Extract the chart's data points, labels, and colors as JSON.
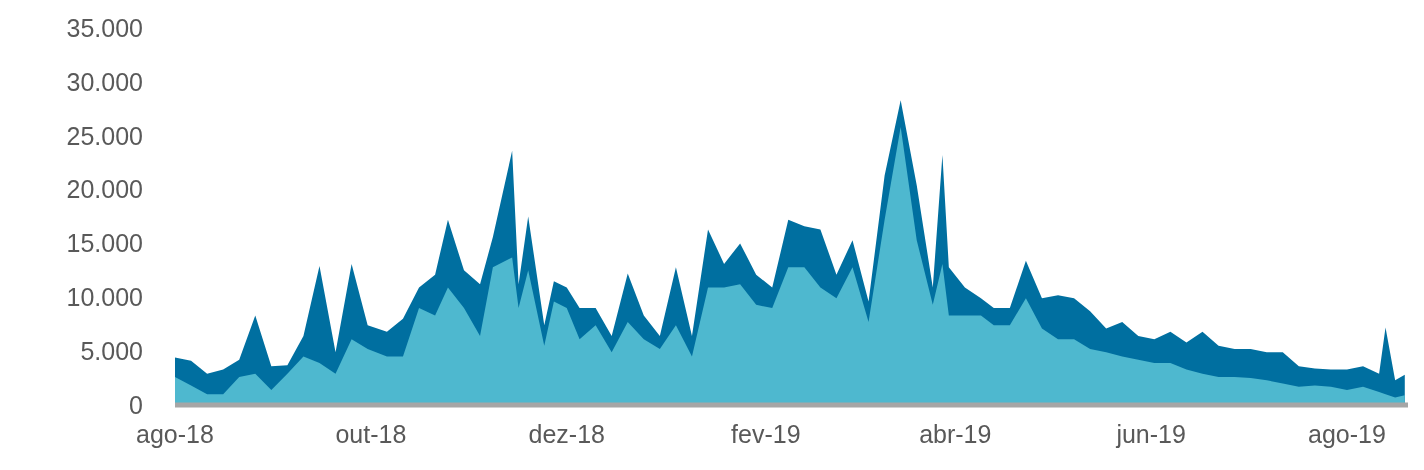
{
  "chart_data": {
    "type": "area",
    "x": [
      "2018-08-01",
      "2018-08-06",
      "2018-08-11",
      "2018-08-16",
      "2018-08-21",
      "2018-08-26",
      "2018-08-31",
      "2018-09-05",
      "2018-09-10",
      "2018-09-15",
      "2018-09-20",
      "2018-09-25",
      "2018-09-30",
      "2018-10-06",
      "2018-10-11",
      "2018-10-16",
      "2018-10-21",
      "2018-10-25",
      "2018-10-30",
      "2018-11-04",
      "2018-11-08",
      "2018-11-14",
      "2018-11-16",
      "2018-11-19",
      "2018-11-24",
      "2018-11-27",
      "2018-12-01",
      "2018-12-05",
      "2018-12-10",
      "2018-12-15",
      "2018-12-20",
      "2018-12-25",
      "2018-12-30",
      "2019-01-04",
      "2019-01-09",
      "2019-01-14",
      "2019-01-19",
      "2019-01-24",
      "2019-01-29",
      "2019-02-03",
      "2019-02-08",
      "2019-02-13",
      "2019-02-18",
      "2019-02-23",
      "2019-02-28",
      "2019-03-05",
      "2019-03-10",
      "2019-03-15",
      "2019-03-20",
      "2019-03-25",
      "2019-03-28",
      "2019-03-30",
      "2019-04-04",
      "2019-04-09",
      "2019-04-13",
      "2019-04-18",
      "2019-04-23",
      "2019-04-28",
      "2019-05-03",
      "2019-05-08",
      "2019-05-13",
      "2019-05-18",
      "2019-05-23",
      "2019-05-28",
      "2019-06-02",
      "2019-06-07",
      "2019-06-12",
      "2019-06-17",
      "2019-06-22",
      "2019-06-27",
      "2019-07-02",
      "2019-07-07",
      "2019-07-12",
      "2019-07-17",
      "2019-07-22",
      "2019-07-27",
      "2019-08-01",
      "2019-08-06",
      "2019-08-11",
      "2019-08-13",
      "2019-08-16",
      "2019-08-19"
    ],
    "series": [
      {
        "color": "#006fa0",
        "values": [
          4400,
          4100,
          2900,
          3300,
          4200,
          8300,
          3600,
          3700,
          6400,
          12900,
          4900,
          13100,
          7400,
          6800,
          8000,
          10900,
          12100,
          17200,
          12500,
          11200,
          15600,
          23600,
          11200,
          17500,
          7400,
          11500,
          10900,
          9000,
          9000,
          6400,
          12200,
          8300,
          6400,
          12800,
          6400,
          16300,
          13100,
          15000,
          12100,
          10900,
          17200,
          16600,
          16300,
          12100,
          15300,
          9600,
          21300,
          28300,
          20400,
          10900,
          23200,
          12800,
          10900,
          9900,
          9000,
          9000,
          13400,
          9900,
          10200,
          9900,
          8700,
          7100,
          7700,
          6400,
          6100,
          6800,
          5800,
          6800,
          5500,
          5200,
          5200,
          4900,
          4900,
          3600,
          3400,
          3300,
          3300,
          3600,
          2900,
          7200,
          2300,
          2800
        ]
      },
      {
        "color": "#4eb8cf",
        "values": [
          2600,
          1800,
          1000,
          1000,
          2600,
          2900,
          1400,
          2900,
          4500,
          3900,
          2900,
          6100,
          5200,
          4500,
          4500,
          9000,
          8300,
          10900,
          9000,
          6400,
          12800,
          13700,
          9000,
          12500,
          5500,
          9600,
          9000,
          6100,
          7400,
          4900,
          7700,
          6100,
          5200,
          7400,
          4500,
          10900,
          10900,
          11200,
          9300,
          9000,
          12800,
          12800,
          10900,
          9900,
          12800,
          7700,
          17200,
          25800,
          15300,
          9300,
          13100,
          8300,
          8300,
          8300,
          7400,
          7400,
          9900,
          7100,
          6100,
          6100,
          5200,
          4900,
          4500,
          4200,
          3900,
          3900,
          3300,
          2900,
          2600,
          2600,
          2500,
          2300,
          2000,
          1700,
          1800,
          1700,
          1400,
          1700,
          1200,
          1000,
          700,
          900
        ]
      }
    ],
    "xlim": [
      "2018-08-01",
      "2019-08-20"
    ],
    "xticks": [
      {
        "value": "2018-08-01",
        "label": "ago-18"
      },
      {
        "value": "2018-10-01",
        "label": "out-18"
      },
      {
        "value": "2018-12-01",
        "label": "dez-18"
      },
      {
        "value": "2019-02-01",
        "label": "fev-19"
      },
      {
        "value": "2019-04-01",
        "label": "abr-19"
      },
      {
        "value": "2019-06-01",
        "label": "jun-19"
      },
      {
        "value": "2019-08-01",
        "label": "ago-19"
      }
    ],
    "ylim": [
      0,
      35000
    ],
    "yticks": [
      0,
      {
        "value": 5000,
        "label": "5.000"
      },
      {
        "value": 10000,
        "label": "10.000"
      },
      {
        "value": 15000,
        "label": "15.000"
      },
      {
        "value": 20000,
        "label": "20.000"
      },
      {
        "value": 25000,
        "label": "25.000"
      },
      {
        "value": 30000,
        "label": "30.000"
      },
      {
        "value": 35000,
        "label": "35.000"
      }
    ],
    "grid": false
  }
}
